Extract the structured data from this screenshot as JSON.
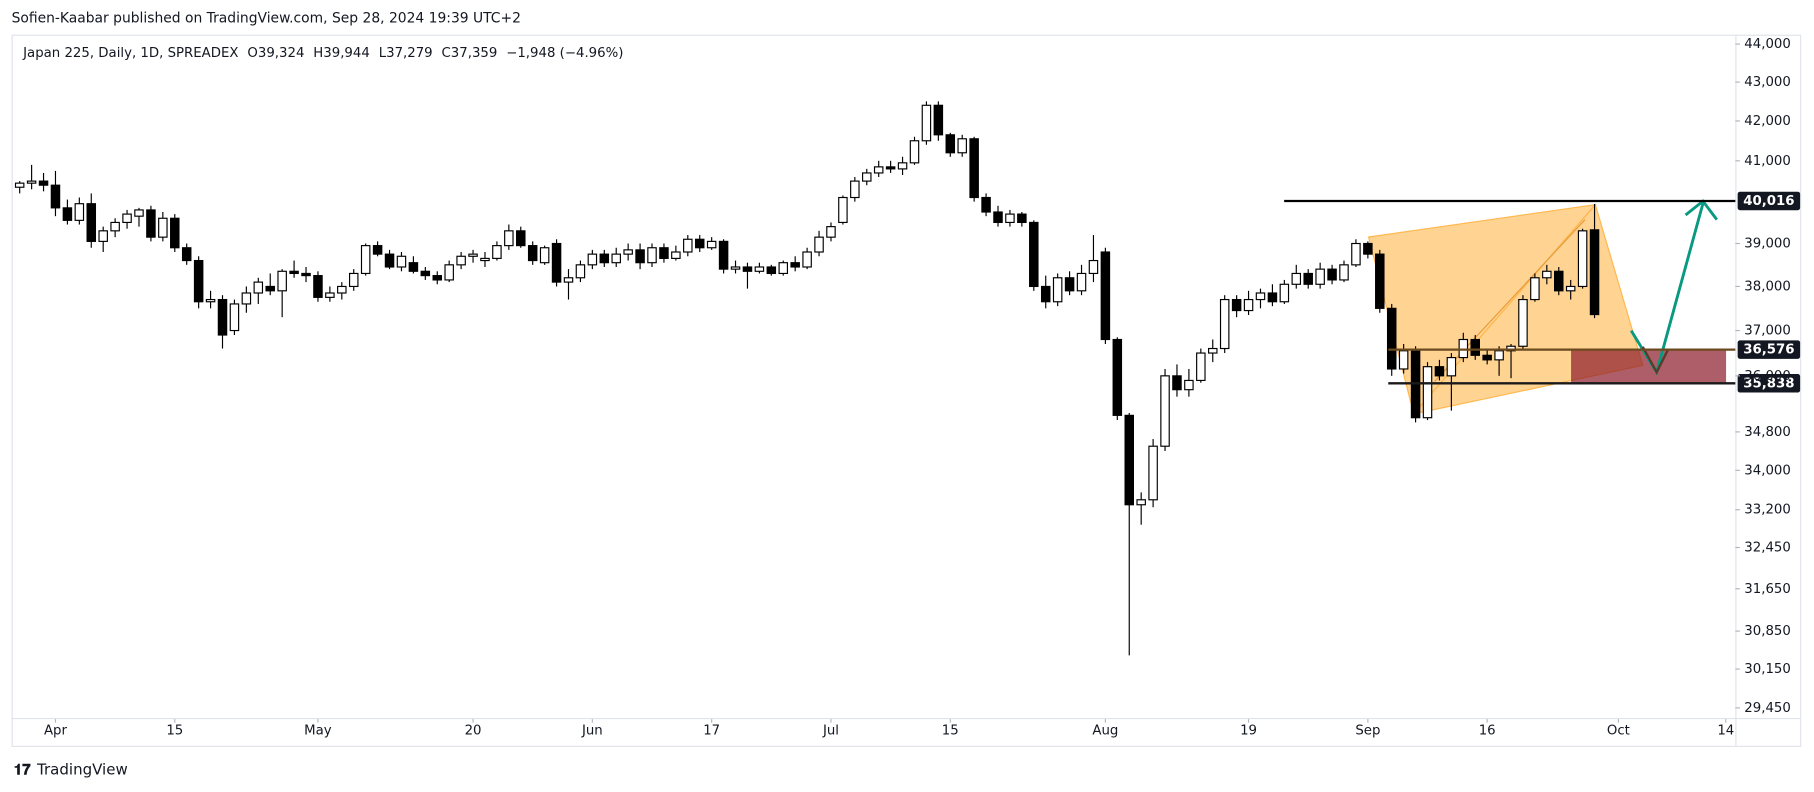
{
  "header": {
    "publisher": "Sofien-Kaabar published on TradingView.com, Sep 28, 2024 19:39 UTC+2"
  },
  "legend": {
    "symbol": "Japan 225, Daily, 1D, SPREADEX",
    "ohlc": [
      "O39,324",
      "H39,944",
      "L37,279",
      "C37,359"
    ],
    "change": "−1,948 (−4.96%)"
  },
  "footer": {
    "brand": "TradingView"
  },
  "chart_data": {
    "type": "candlestick",
    "log": true,
    "ylim": [
      29250,
      44250
    ],
    "yticks": [
      {
        "value": 44000,
        "label": "44,000"
      },
      {
        "value": 43000,
        "label": "43,000"
      },
      {
        "value": 42000,
        "label": "42,000"
      },
      {
        "value": 41000,
        "label": "41,000"
      },
      {
        "value": 39000,
        "label": "39,000"
      },
      {
        "value": 38000,
        "label": "38,000"
      },
      {
        "value": 37000,
        "label": "37,000"
      },
      {
        "value": 36000,
        "label": "36,000"
      },
      {
        "value": 34800,
        "label": "34,800"
      },
      {
        "value": 34000,
        "label": "34,000"
      },
      {
        "value": 33200,
        "label": "33,200"
      },
      {
        "value": 32450,
        "label": "32,450"
      },
      {
        "value": 31650,
        "label": "31,650"
      },
      {
        "value": 30850,
        "label": "30,850"
      },
      {
        "value": 30150,
        "label": "30,150"
      },
      {
        "value": 29450,
        "label": "29,450"
      }
    ],
    "xlim": [
      -0.68,
      143.8
    ],
    "xticks": [
      {
        "value": 3,
        "label": "Apr"
      },
      {
        "value": 13,
        "label": "15"
      },
      {
        "value": 25,
        "label": "May"
      },
      {
        "value": 38,
        "label": "20"
      },
      {
        "value": 48,
        "label": "Jun"
      },
      {
        "value": 58,
        "label": "17"
      },
      {
        "value": 68,
        "label": "Jul"
      },
      {
        "value": 78,
        "label": "15"
      },
      {
        "value": 91,
        "label": "Aug"
      },
      {
        "value": 103,
        "label": "19"
      },
      {
        "value": 113,
        "label": "Sep"
      },
      {
        "value": 123,
        "label": "16"
      },
      {
        "value": 134,
        "label": "Oct"
      },
      {
        "value": 143,
        "label": "14"
      }
    ],
    "up_color": "#ffffff",
    "down_color": "#000000",
    "open": [
      40350,
      40450,
      40500,
      40400,
      39850,
      39550,
      39950,
      39050,
      39300,
      39500,
      39650,
      39800,
      39150,
      39600,
      38900,
      38600,
      37650,
      37700,
      37000,
      37600,
      37850,
      38000,
      37900,
      38350,
      38300,
      38250,
      37750,
      37850,
      38000,
      38300,
      38950,
      38750,
      38450,
      38550,
      38350,
      38250,
      38150,
      38500,
      38700,
      38600,
      38650,
      38950,
      39300,
      38950,
      38550,
      39000,
      38100,
      38200,
      38500,
      38750,
      38550,
      38750,
      38850,
      38550,
      38900,
      38650,
      38800,
      39100,
      38900,
      39050,
      38400,
      38450,
      38350,
      38450,
      38300,
      38550,
      38450,
      38800,
      39150,
      39500,
      40100,
      40500,
      40700,
      40850,
      40800,
      40950,
      41500,
      42400,
      41650,
      41200,
      41550,
      40100,
      39750,
      39500,
      39700,
      39500,
      38000,
      37650,
      38200,
      37900,
      38300,
      38800,
      36800,
      35150,
      33300,
      33400,
      34500,
      36000,
      35700,
      35900,
      36500,
      36600,
      37700,
      37450,
      37700,
      37850,
      37650,
      38050,
      38300,
      38050,
      38400,
      38150,
      38500,
      39000,
      38750,
      37500,
      36150,
      36550,
      35100,
      36200,
      36000,
      36400,
      36800,
      36450,
      36350,
      36550,
      36650,
      37700,
      38200,
      38350,
      37900,
      38000,
      39324
    ],
    "high": [
      40500,
      40900,
      40700,
      40750,
      40050,
      40100,
      40200,
      39400,
      39600,
      39800,
      39850,
      39900,
      39750,
      39700,
      39000,
      38700,
      37900,
      37800,
      37700,
      38000,
      38200,
      38300,
      38400,
      38600,
      38450,
      38350,
      38000,
      38100,
      38400,
      39000,
      39050,
      38850,
      38800,
      38700,
      38450,
      38350,
      38600,
      38800,
      38850,
      38800,
      39050,
      39450,
      39400,
      39050,
      38950,
      39100,
      38400,
      38600,
      38850,
      38850,
      38900,
      39000,
      39000,
      39000,
      39000,
      38950,
      39200,
      39200,
      39150,
      39100,
      38600,
      38550,
      38550,
      38500,
      38600,
      38700,
      38900,
      39300,
      39500,
      40150,
      40600,
      40800,
      41000,
      41000,
      41100,
      41600,
      42500,
      42500,
      41700,
      41650,
      41600,
      40200,
      39900,
      39800,
      39750,
      39550,
      38250,
      38300,
      38350,
      38500,
      39200,
      38900,
      36850,
      35200,
      33550,
      34650,
      36150,
      36250,
      36150,
      36600,
      36800,
      37800,
      37800,
      37900,
      37950,
      38050,
      38150,
      38500,
      38400,
      38550,
      38500,
      38600,
      39100,
      39050,
      38850,
      37600,
      36700,
      36650,
      36300,
      36350,
      36500,
      36950,
      36900,
      36600,
      36650,
      36700,
      37800,
      38300,
      38500,
      38450,
      38150,
      39350,
      39944
    ],
    "low": [
      40200,
      40300,
      40250,
      39650,
      39450,
      39450,
      38900,
      38800,
      39150,
      39350,
      39400,
      39050,
      39050,
      38800,
      38500,
      37500,
      37500,
      36600,
      36900,
      37400,
      37600,
      37800,
      37300,
      38200,
      38100,
      37650,
      37650,
      37700,
      37900,
      38250,
      38700,
      38400,
      38350,
      38300,
      38150,
      38050,
      38100,
      38400,
      38550,
      38450,
      38600,
      38850,
      38900,
      38500,
      38500,
      38000,
      37700,
      38100,
      38400,
      38450,
      38450,
      38600,
      38400,
      38450,
      38550,
      38600,
      38700,
      38800,
      38850,
      38300,
      38300,
      37950,
      38300,
      38250,
      38250,
      38350,
      38400,
      38700,
      39050,
      39450,
      40000,
      40400,
      40600,
      40700,
      40650,
      40900,
      41400,
      41500,
      41100,
      41100,
      40000,
      39650,
      39400,
      39400,
      39400,
      37900,
      37500,
      37550,
      37800,
      37800,
      38100,
      36700,
      35050,
      30400,
      32900,
      33250,
      34400,
      35550,
      35550,
      35850,
      36300,
      36500,
      37300,
      37350,
      37500,
      37550,
      37600,
      37950,
      37950,
      37950,
      38050,
      38100,
      38450,
      38650,
      37400,
      36000,
      36050,
      35000,
      35050,
      35900,
      35250,
      36300,
      36350,
      36250,
      36000,
      35950,
      36600,
      37650,
      38050,
      37800,
      37700,
      37950,
      37279
    ],
    "close": [
      40450,
      40500,
      40400,
      39850,
      39550,
      39950,
      39050,
      39300,
      39500,
      39700,
      39800,
      39150,
      39600,
      38900,
      38600,
      37650,
      37700,
      36900,
      37600,
      37850,
      38100,
      37900,
      38350,
      38300,
      38250,
      37750,
      37850,
      38000,
      38300,
      38950,
      38750,
      38450,
      38700,
      38350,
      38250,
      38150,
      38500,
      38700,
      38750,
      38650,
      38950,
      39300,
      38950,
      38600,
      38900,
      38100,
      38200,
      38500,
      38750,
      38550,
      38750,
      38850,
      38550,
      38900,
      38650,
      38800,
      39100,
      38900,
      39050,
      38400,
      38450,
      38350,
      38450,
      38300,
      38550,
      38450,
      38800,
      39150,
      39400,
      40100,
      40500,
      40700,
      40850,
      40800,
      40950,
      41500,
      42400,
      41650,
      41200,
      41550,
      40100,
      39750,
      39500,
      39700,
      39500,
      38000,
      37650,
      38200,
      37900,
      38300,
      38600,
      36800,
      35150,
      33300,
      33400,
      34500,
      36000,
      35700,
      35900,
      36500,
      36600,
      37700,
      37450,
      37700,
      37850,
      37650,
      38050,
      38300,
      38050,
      38400,
      38150,
      38500,
      39000,
      38750,
      37500,
      36150,
      36550,
      35100,
      36200,
      36000,
      36400,
      36800,
      36450,
      36350,
      36550,
      36650,
      37700,
      38200,
      38350,
      37900,
      38000,
      39300,
      37359
    ],
    "levels": [
      {
        "value": 40016,
        "label": "40,016"
      },
      {
        "value": 36576,
        "label": "36,576"
      },
      {
        "value": 35838,
        "label": "35,838"
      }
    ]
  }
}
